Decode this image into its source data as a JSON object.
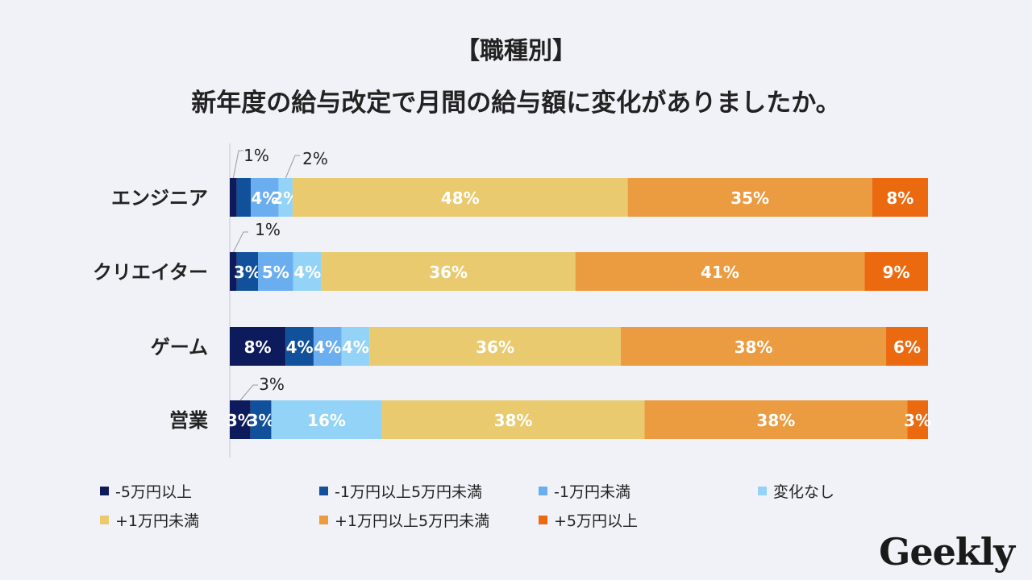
{
  "chart_data": {
    "type": "bar",
    "orientation": "horizontal",
    "stacked": "percent",
    "title": "【職種別】",
    "subtitle": "新年度の給与改定で月間の給与額に変化がありましたか。",
    "categories": [
      "エンジニア",
      "クリエイター",
      "ゲーム",
      "営業"
    ],
    "series": [
      {
        "name": "-5万円以上",
        "color": "#0d1a5c",
        "values": [
          1,
          1,
          8,
          3
        ],
        "labels": [
          "1%",
          "1%",
          "8%",
          "3%"
        ]
      },
      {
        "name": "-1万円以上5万円未満",
        "color": "#11509a",
        "values": [
          2,
          3,
          4,
          3
        ],
        "labels": [
          "",
          "3%",
          "4%",
          "3%"
        ]
      },
      {
        "name": "-1万円未満",
        "color": "#6aaef0",
        "values": [
          4,
          5,
          4,
          0
        ],
        "labels": [
          "4%",
          "5%",
          "4%",
          ""
        ]
      },
      {
        "name": "変化なし",
        "color": "#93d3f7",
        "values": [
          2,
          4,
          4,
          16
        ],
        "labels": [
          "2%",
          "4%",
          "4%",
          "16%"
        ]
      },
      {
        "name": "+1万円未満",
        "color": "#e9ca6f",
        "values": [
          48,
          36,
          36,
          38
        ],
        "labels": [
          "48%",
          "36%",
          "36%",
          "38%"
        ]
      },
      {
        "name": "+1万円以上5万円未満",
        "color": "#eb9b40",
        "values": [
          35,
          41,
          38,
          38
        ],
        "labels": [
          "35%",
          "41%",
          "38%",
          "38%"
        ]
      },
      {
        "name": "+5万円以上",
        "color": "#eb6a10",
        "values": [
          8,
          9,
          6,
          3
        ],
        "labels": [
          "8%",
          "9%",
          "6%",
          "3%"
        ]
      }
    ],
    "callouts": [
      {
        "category": 0,
        "series": 0,
        "text": "1%"
      },
      {
        "category": 0,
        "series": 3,
        "text": "2%"
      },
      {
        "category": 1,
        "series": 0,
        "text": "1%"
      },
      {
        "category": 3,
        "series": 0,
        "text": "3%"
      }
    ],
    "legend_position": "bottom"
  },
  "brand": {
    "logo": "Geekly"
  }
}
